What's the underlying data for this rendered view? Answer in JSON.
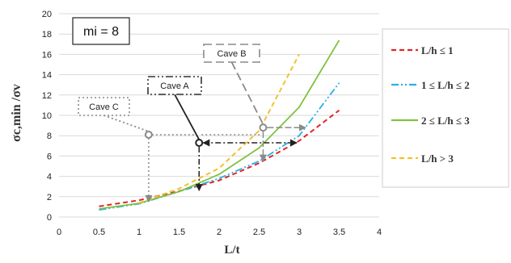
{
  "chart_data": {
    "type": "line",
    "xlabel": "L/t",
    "ylabel": "σc,min /σv",
    "xlim": [
      0,
      4
    ],
    "ylim": [
      0,
      20
    ],
    "x_ticks": [
      "0",
      "0.5",
      "1",
      "1.5",
      "2",
      "2.5",
      "3",
      "3.5",
      "4"
    ],
    "y_ticks": [
      "0",
      "2",
      "4",
      "6",
      "8",
      "10",
      "12",
      "14",
      "16",
      "18",
      "20"
    ],
    "grid": "horizontal",
    "legend_position": "right",
    "inset_label": "mi = 8",
    "series": [
      {
        "name": "L/h ≤ 1",
        "color": "#e0262b",
        "style": "dashed",
        "points": [
          [
            0.5,
            1.05
          ],
          [
            1.0,
            1.65
          ],
          [
            1.5,
            2.55
          ],
          [
            2.0,
            3.6
          ],
          [
            2.5,
            5.3
          ],
          [
            3.0,
            7.5
          ],
          [
            3.5,
            10.5
          ]
        ]
      },
      {
        "name": "1 ≤ L/h ≤ 2",
        "color": "#2ab0e4",
        "style": "dashdotdot",
        "points": [
          [
            0.5,
            0.7
          ],
          [
            1.0,
            1.3
          ],
          [
            1.5,
            2.5
          ],
          [
            2.0,
            3.8
          ],
          [
            2.5,
            5.5
          ],
          [
            3.0,
            8.0
          ],
          [
            3.5,
            13.2
          ]
        ]
      },
      {
        "name": "2 ≤ L/h ≤ 3",
        "color": "#7fc241",
        "style": "solid",
        "points": [
          [
            0.5,
            0.8
          ],
          [
            1.0,
            1.35
          ],
          [
            1.5,
            2.5
          ],
          [
            2.0,
            4.2
          ],
          [
            2.5,
            6.8
          ],
          [
            3.0,
            10.8
          ],
          [
            3.5,
            17.4
          ]
        ]
      },
      {
        "name": "L/h > 3",
        "color": "#f2c12e",
        "style": "dashed",
        "points": [
          [
            1.0,
            1.4
          ],
          [
            1.5,
            2.8
          ],
          [
            2.0,
            4.8
          ],
          [
            2.5,
            8.5
          ],
          [
            3.0,
            16.0
          ]
        ]
      }
    ],
    "caves": [
      {
        "label": "Cave A",
        "x": 1.75,
        "y": 7.3,
        "box_style": "dashdotdot"
      },
      {
        "label": "Cave B",
        "x": 2.55,
        "y": 8.8,
        "box_style": "longdash"
      },
      {
        "label": "Cave C",
        "x": 1.12,
        "y": 8.1,
        "box_style": "dotted"
      }
    ]
  }
}
